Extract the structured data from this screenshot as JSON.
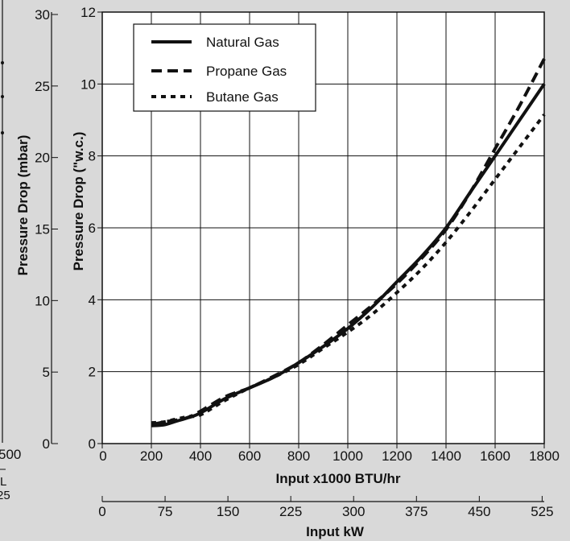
{
  "chart_data": {
    "type": "line",
    "xlabel": "Input x1000 BTU/hr",
    "secondary_xlabel": "Input kW",
    "ylabel": "Pressure Drop (\"w.c.)",
    "secondary_ylabel": "Pressure Drop (mbar)",
    "xlim": [
      0,
      1800
    ],
    "ylim": [
      0,
      12
    ],
    "x_ticks": [
      "0",
      "200",
      "400",
      "600",
      "800",
      "1000",
      "1200",
      "1400",
      "1600",
      "1800"
    ],
    "y_ticks": [
      "0",
      "2",
      "4",
      "6",
      "8",
      "10",
      "12"
    ],
    "secondary_x_ticks": [
      "0",
      "75",
      "150",
      "225",
      "300",
      "375",
      "450",
      "525"
    ],
    "secondary_y_ticks": [
      "0",
      "5",
      "10",
      "15",
      "20",
      "25",
      "30"
    ],
    "partial_left_labels": [
      "500",
      "L",
      "25"
    ],
    "grid": true,
    "legend_position": "top-left",
    "series": [
      {
        "name": "Natural Gas",
        "style": "solid",
        "x": [
          200,
          250,
          300,
          350,
          400,
          500,
          600,
          700,
          800,
          900,
          1000,
          1100,
          1200,
          1300,
          1400,
          1500,
          1600,
          1700,
          1800
        ],
        "values": [
          0.5,
          0.52,
          0.62,
          0.72,
          0.85,
          1.25,
          1.55,
          1.85,
          2.25,
          2.7,
          3.2,
          3.8,
          4.5,
          5.2,
          6.0,
          7.0,
          8.0,
          9.0,
          10.0
        ]
      },
      {
        "name": "Propane Gas",
        "style": "dashed",
        "x": [
          200,
          250,
          300,
          350,
          400,
          500,
          600,
          700,
          800,
          900,
          1000,
          1100,
          1200,
          1300,
          1400,
          1500,
          1600,
          1700,
          1800
        ],
        "values": [
          0.52,
          0.6,
          0.65,
          0.73,
          0.9,
          1.3,
          1.55,
          1.88,
          2.25,
          2.75,
          3.3,
          3.85,
          4.45,
          5.15,
          5.95,
          7.0,
          8.2,
          9.4,
          10.7
        ]
      },
      {
        "name": "Butane Gas",
        "style": "dotted",
        "x": [
          200,
          250,
          300,
          350,
          400,
          500,
          600,
          700,
          800,
          900,
          1000,
          1100,
          1200,
          1300,
          1400,
          1500,
          1600,
          1700,
          1800
        ],
        "values": [
          0.58,
          0.6,
          0.68,
          0.75,
          0.8,
          1.2,
          1.55,
          1.85,
          2.2,
          2.65,
          3.1,
          3.6,
          4.2,
          4.85,
          5.6,
          6.45,
          7.35,
          8.25,
          9.15
        ]
      }
    ]
  }
}
